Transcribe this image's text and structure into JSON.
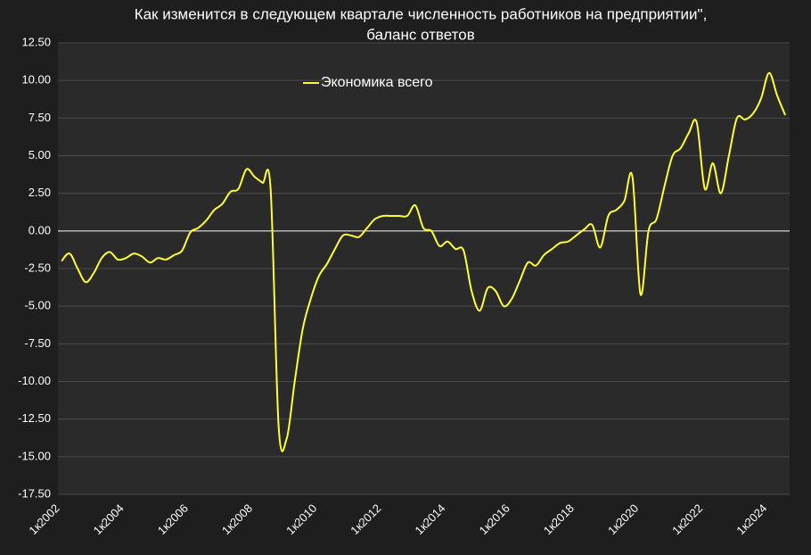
{
  "chart_data": {
    "type": "line",
    "title": "Как изменится в следующем квартале численность работников на предприятии\",",
    "subtitle": "баланс ответов",
    "categories": [
      "1к2002",
      null,
      null,
      null,
      null,
      null,
      null,
      null,
      "1к2004",
      null,
      null,
      null,
      null,
      null,
      null,
      null,
      "1к2006",
      null,
      null,
      null,
      null,
      null,
      null,
      null,
      "1к2008",
      null,
      null,
      null,
      null,
      null,
      null,
      null,
      "1к2010",
      null,
      null,
      null,
      null,
      null,
      null,
      null,
      "1к2012",
      null,
      null,
      null,
      null,
      null,
      null,
      null,
      "1к2014",
      null,
      null,
      null,
      null,
      null,
      null,
      null,
      "1к2016",
      null,
      null,
      null,
      null,
      null,
      null,
      null,
      "1к2018",
      null,
      null,
      null,
      null,
      null,
      null,
      null,
      "1к2020",
      null,
      null,
      null,
      null,
      null,
      null,
      null,
      "1к2022",
      null,
      null,
      null,
      null,
      null,
      null,
      null,
      "1к2024",
      null,
      null
    ],
    "series": [
      {
        "name": "Экономика всего",
        "color": "#ffff33",
        "values": [
          -2.0,
          -1.5,
          -2.5,
          -3.4,
          -2.8,
          -1.8,
          -1.4,
          -1.9,
          -1.8,
          -1.5,
          -1.7,
          -2.1,
          -1.8,
          -1.9,
          -1.6,
          -1.3,
          -0.1,
          0.2,
          0.7,
          1.4,
          1.8,
          2.6,
          2.8,
          4.1,
          3.6,
          3.2,
          2.8,
          -13.0,
          -13.8,
          -10.0,
          -6.5,
          -4.5,
          -3.0,
          -2.2,
          -1.2,
          -0.3,
          -0.3,
          -0.4,
          0.2,
          0.8,
          1.0,
          1.0,
          1.0,
          1.0,
          1.7,
          0.2,
          0.0,
          -1.0,
          -0.7,
          -1.2,
          -1.3,
          -4.0,
          -5.3,
          -3.8,
          -4.0,
          -5.0,
          -4.5,
          -3.3,
          -2.1,
          -2.3,
          -1.6,
          -1.2,
          -0.8,
          -0.7,
          -0.3,
          0.1,
          0.4,
          -1.1,
          1.0,
          1.4,
          2.0,
          3.6,
          -4.2,
          0.0,
          0.8,
          3.0,
          5.0,
          5.5,
          6.5,
          7.2,
          2.8,
          4.5,
          2.5,
          5.0,
          7.5,
          7.4,
          7.8,
          8.8,
          10.5,
          9.0,
          7.7
        ]
      }
    ],
    "ylim": [
      -17.5,
      12.5
    ],
    "yticks": [
      {
        "value": -17.5,
        "label": "-17.50"
      },
      {
        "value": -15,
        "label": "-15.00"
      },
      {
        "value": -12.5,
        "label": "-12.50"
      },
      {
        "value": -10,
        "label": "-10.00"
      },
      {
        "value": -7.5,
        "label": "-7.50"
      },
      {
        "value": -5,
        "label": "-5.00"
      },
      {
        "value": -2.5,
        "label": "-2.50"
      },
      {
        "value": 0,
        "label": "0.00"
      },
      {
        "value": 2.5,
        "label": "2.50"
      },
      {
        "value": 5,
        "label": "5.00"
      },
      {
        "value": 7.5,
        "label": "7.50"
      },
      {
        "value": 10,
        "label": "10.00"
      },
      {
        "value": 12.5,
        "label": "12.50"
      }
    ],
    "grid": true
  }
}
